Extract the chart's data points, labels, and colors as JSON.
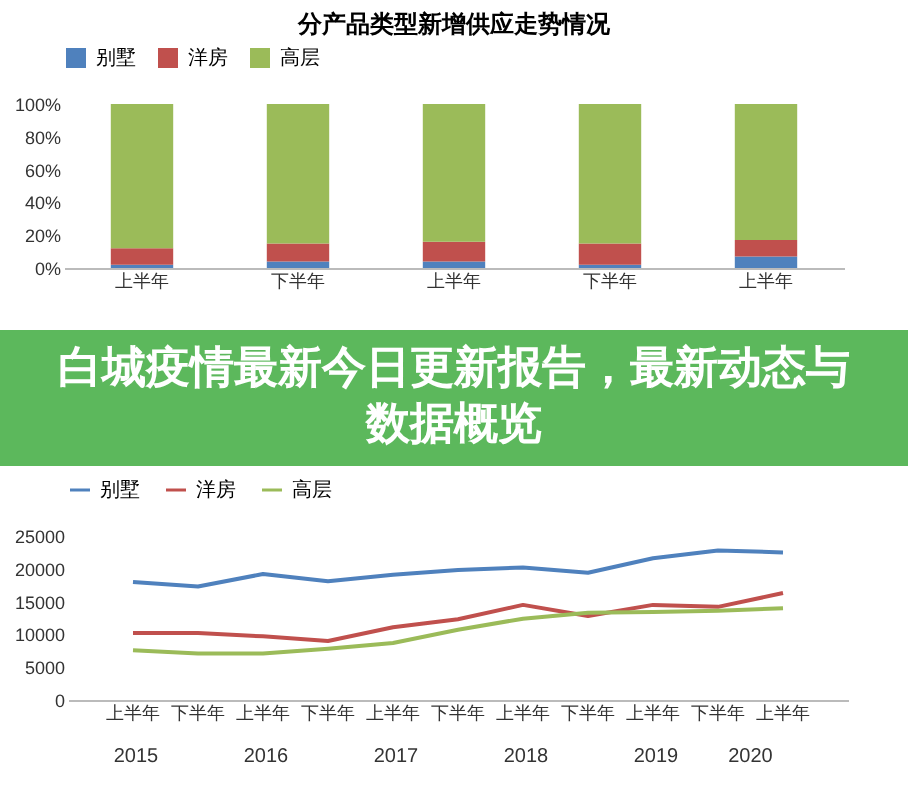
{
  "chart_data": [
    {
      "type": "bar",
      "title": "分产品类型新增供应走势情况",
      "stacked": true,
      "legend": "top",
      "categories": [
        "上半年",
        "下半年",
        "上半年",
        "下半年",
        "上半年"
      ],
      "series": [
        {
          "name": "别墅",
          "color": "#4f81bd",
          "values": [
            2,
            4,
            4,
            2,
            7
          ]
        },
        {
          "name": "洋房",
          "color": "#c0504d",
          "values": [
            10,
            11,
            12,
            13,
            10
          ]
        },
        {
          "name": "高层",
          "color": "#9bbb59",
          "values": [
            88,
            85,
            84,
            85,
            83
          ]
        }
      ],
      "ylim": [
        0,
        100
      ],
      "yticks": [
        {
          "value": 0,
          "label": "0%"
        },
        {
          "value": 20,
          "label": "20%"
        },
        {
          "value": 40,
          "label": "40%"
        },
        {
          "value": 60,
          "label": "60%"
        },
        {
          "value": 80,
          "label": "80%"
        },
        {
          "value": 100,
          "label": "100%"
        }
      ],
      "annotations": [
        "白城疫情最新今日更新报告，最新动态与数据概览"
      ]
    },
    {
      "type": "line",
      "legend": "top",
      "categories": [
        "上半年",
        "下半年",
        "上半年",
        "下半年",
        "上半年",
        "下半年",
        "上半年",
        "下半年",
        "上半年",
        "下半年",
        "上半年"
      ],
      "series": [
        {
          "name": "别墅",
          "color": "#4f81bd",
          "values": [
            18000,
            17300,
            19200,
            18100,
            19100,
            19800,
            20200,
            19400,
            21600,
            22800,
            22500
          ]
        },
        {
          "name": "洋房",
          "color": "#c0504d",
          "values": [
            10200,
            10200,
            9700,
            9000,
            11100,
            12300,
            14500,
            12800,
            14500,
            14200,
            16300
          ]
        },
        {
          "name": "高层",
          "color": "#9bbb59",
          "values": [
            7600,
            7100,
            7100,
            7800,
            8700,
            10700,
            12400,
            13300,
            13400,
            13600,
            14000
          ]
        }
      ],
      "ylim": [
        0,
        25000
      ],
      "yticks": [
        0,
        5000,
        10000,
        15000,
        20000,
        25000
      ],
      "annotations": [
        "2015",
        "2016",
        "2017",
        "2018",
        "2019",
        "2020"
      ]
    }
  ]
}
